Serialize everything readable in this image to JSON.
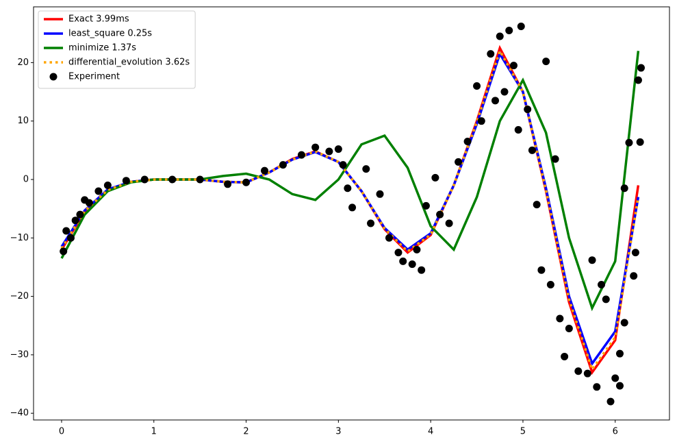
{
  "chart_data": {
    "type": "line",
    "x": [
      0,
      0.25,
      0.5,
      0.75,
      1,
      1.25,
      1.5,
      1.75,
      2,
      2.25,
      2.5,
      2.75,
      3,
      3.25,
      3.5,
      3.75,
      4,
      4.25,
      4.5,
      4.75,
      5,
      5.25,
      5.5,
      5.75,
      6,
      6.25
    ],
    "series": [
      {
        "name": "Exact 3.99ms",
        "color": "#ff0000",
        "linestyle": "solid",
        "values": [
          -12,
          -5.5,
          -1.8,
          -0.4,
          0,
          0,
          0,
          -0.4,
          -0.5,
          1.2,
          3.5,
          4.8,
          3,
          -2,
          -8.5,
          -12.5,
          -9.5,
          -1,
          10,
          22.5,
          15,
          -2,
          -21,
          -33,
          -27.5,
          -1
        ]
      },
      {
        "name": "least_square 0.25s",
        "color": "#0000ff",
        "linestyle": "solid",
        "values": [
          -11.5,
          -5.3,
          -1.7,
          -0.4,
          0,
          0,
          0,
          -0.4,
          -0.5,
          1.2,
          3.4,
          4.7,
          3,
          -2,
          -8.3,
          -12,
          -9.2,
          -1,
          9.5,
          21.5,
          15,
          -1.5,
          -20,
          -31.5,
          -26,
          -3
        ]
      },
      {
        "name": "minimize 1.37s",
        "color": "#008000",
        "linestyle": "solid",
        "values": [
          -13.5,
          -6,
          -2,
          -0.5,
          0,
          0,
          0,
          0.6,
          1,
          0,
          -2.5,
          -3.5,
          0,
          6,
          7.5,
          2,
          -8,
          -12,
          -3,
          10,
          17,
          8,
          -10,
          -22,
          -14,
          22
        ]
      },
      {
        "name": "differential_evolution 3.62s",
        "color": "#ffa500",
        "linestyle": "dotted",
        "values": [
          -11.8,
          -5.4,
          -1.8,
          -0.4,
          0,
          0,
          0,
          -0.4,
          -0.5,
          1.2,
          3.4,
          4.8,
          3,
          -2,
          -8.4,
          -12.3,
          -9.4,
          -1,
          9.8,
          22,
          15,
          -1.8,
          -20.5,
          -32.5,
          -27,
          -3
        ]
      }
    ],
    "scatter": {
      "name": "Experiment",
      "color": "#000000",
      "x": [
        0.02,
        0.05,
        0.1,
        0.15,
        0.2,
        0.25,
        0.3,
        0.4,
        0.5,
        0.7,
        0.9,
        1.2,
        1.5,
        1.8,
        2.0,
        2.2,
        2.4,
        2.6,
        2.75,
        2.9,
        3.0,
        3.05,
        3.1,
        3.15,
        3.3,
        3.35,
        3.45,
        3.55,
        3.65,
        3.7,
        3.8,
        3.85,
        3.9,
        3.95,
        4.05,
        4.1,
        4.2,
        4.3,
        4.4,
        4.5,
        4.55,
        4.65,
        4.7,
        4.75,
        4.8,
        4.85,
        4.9,
        4.95,
        4.98,
        5.05,
        5.1,
        5.15,
        5.2,
        5.25,
        5.3,
        5.35,
        5.4,
        5.45,
        5.5,
        5.6,
        5.7,
        5.75,
        5.8,
        5.85,
        5.9,
        5.95,
        6.0,
        6.05,
        6.1,
        6.15,
        6.2,
        6.25,
        6.27,
        6.28,
        6.22,
        6.05,
        6.1
      ],
      "values": [
        -12.3,
        -8.8,
        -10,
        -7,
        -6,
        -3.5,
        -4,
        -2,
        -1,
        -0.2,
        0,
        0,
        0,
        -0.8,
        -0.5,
        1.5,
        2.5,
        4.2,
        5.5,
        4.8,
        5.2,
        2.5,
        -1.5,
        -4.8,
        1.8,
        -7.5,
        -2.5,
        -10,
        -12.5,
        -14,
        -14.5,
        -12,
        -15.5,
        -4.5,
        0.3,
        -6,
        -7.5,
        3,
        6.5,
        16,
        10,
        21.5,
        13.5,
        24.5,
        15,
        25.5,
        19.5,
        8.5,
        26.2,
        12,
        5,
        -4.3,
        -15.5,
        20.2,
        -18,
        3.5,
        -23.8,
        -30.3,
        -25.5,
        -32.8,
        -33.2,
        -13.8,
        -35.5,
        -18,
        -20.5,
        -38,
        -34,
        -29.8,
        -24.5,
        6.3,
        -16.5,
        17,
        6.4,
        19.1,
        -12.5,
        -35.3,
        -1.5
      ]
    },
    "xlim": [
      -0.304,
      6.588
    ],
    "ylim": [
      -41.15,
      29.54
    ],
    "xticks": [
      0,
      1,
      2,
      3,
      4,
      5,
      6
    ],
    "yticks": [
      {
        "value": -40,
        "label": "−40"
      },
      {
        "value": -30,
        "label": "−30"
      },
      {
        "value": -20,
        "label": "−20"
      },
      {
        "value": -10,
        "label": "−10"
      },
      0,
      10,
      20
    ],
    "legend": "upper left"
  }
}
